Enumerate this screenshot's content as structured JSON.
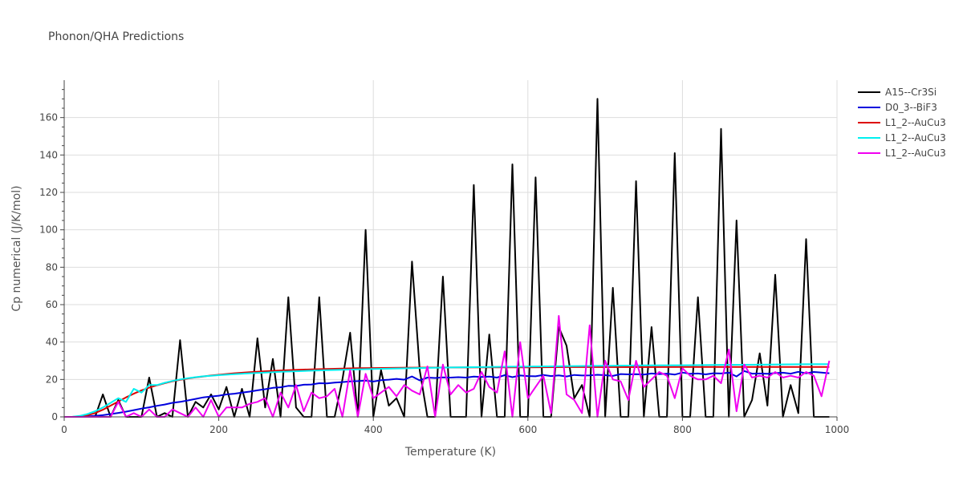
{
  "chart_data": {
    "type": "line",
    "title": "Phonon/QHA Predictions",
    "xlabel": "Temperature (K)",
    "ylabel": "Cp numerical (J/K/mol)",
    "xlim": [
      0,
      1000
    ],
    "ylim": [
      0,
      180
    ],
    "xticks": [
      0,
      200,
      400,
      600,
      800,
      1000
    ],
    "yticks": [
      0,
      20,
      40,
      60,
      80,
      100,
      120,
      140,
      160
    ],
    "grid": true,
    "legend_position": "top-right",
    "series": [
      {
        "name": "A15--Cr3Si",
        "color": "#000000",
        "x": [
          0,
          10,
          20,
          30,
          40,
          50,
          60,
          70,
          80,
          90,
          100,
          110,
          120,
          130,
          140,
          150,
          160,
          170,
          180,
          190,
          200,
          210,
          220,
          230,
          240,
          250,
          260,
          270,
          280,
          290,
          300,
          310,
          320,
          330,
          340,
          350,
          360,
          370,
          380,
          390,
          400,
          410,
          420,
          430,
          440,
          450,
          460,
          470,
          480,
          490,
          500,
          510,
          520,
          530,
          540,
          550,
          560,
          570,
          580,
          590,
          600,
          610,
          620,
          630,
          640,
          650,
          660,
          670,
          680,
          690,
          700,
          710,
          720,
          730,
          740,
          750,
          760,
          770,
          780,
          790,
          800,
          810,
          820,
          830,
          840,
          850,
          860,
          870,
          880,
          890,
          900,
          910,
          920,
          930,
          940,
          950,
          960,
          970,
          980,
          990
        ],
        "y": [
          0,
          0,
          0,
          0,
          0,
          12,
          0,
          9,
          0,
          0,
          0,
          21,
          0,
          2,
          0,
          41,
          0,
          8,
          5,
          12,
          4,
          16,
          0,
          15,
          0,
          42,
          5,
          31,
          0,
          64,
          5,
          0,
          0,
          64,
          0,
          0,
          20,
          45,
          0,
          100,
          0,
          25,
          6,
          10,
          0,
          83,
          25,
          0,
          0,
          75,
          0,
          0,
          0,
          124,
          0,
          44,
          0,
          0,
          135,
          0,
          0,
          128,
          0,
          0,
          48,
          38,
          10,
          17,
          0,
          170,
          0,
          69,
          0,
          0,
          126,
          0,
          48,
          0,
          0,
          141,
          0,
          0,
          64,
          0,
          0,
          154,
          0,
          105,
          0,
          9,
          34,
          6,
          76,
          0,
          17,
          2,
          95,
          0,
          0,
          0
        ]
      },
      {
        "name": "D0_3--BiF3",
        "color": "#0000dd",
        "x": [
          0,
          10,
          20,
          30,
          40,
          50,
          60,
          70,
          80,
          90,
          100,
          110,
          120,
          130,
          140,
          150,
          160,
          170,
          180,
          190,
          200,
          210,
          220,
          230,
          240,
          250,
          260,
          270,
          280,
          290,
          300,
          310,
          320,
          330,
          340,
          350,
          360,
          370,
          380,
          390,
          400,
          410,
          420,
          430,
          440,
          450,
          460,
          470,
          480,
          490,
          500,
          510,
          520,
          530,
          540,
          550,
          560,
          570,
          580,
          590,
          600,
          610,
          620,
          630,
          640,
          650,
          660,
          670,
          680,
          690,
          700,
          710,
          720,
          730,
          740,
          750,
          760,
          770,
          780,
          790,
          800,
          810,
          820,
          830,
          840,
          850,
          860,
          870,
          880,
          890,
          900,
          910,
          920,
          930,
          940,
          950,
          960,
          970,
          980,
          990
        ],
        "y": [
          0,
          0,
          0,
          0.2,
          0.5,
          0.9,
          1.5,
          2.1,
          2.8,
          3.6,
          4.4,
          5.1,
          5.9,
          6.6,
          7.5,
          8,
          8.8,
          9.6,
          10.4,
          10.9,
          11.3,
          12,
          12.4,
          13,
          13.5,
          14.2,
          14.8,
          15.5,
          15.8,
          16.6,
          16.5,
          17.2,
          17.3,
          18,
          17.9,
          18.3,
          18.6,
          19,
          19.1,
          19.4,
          18.9,
          19.6,
          19.9,
          20.3,
          19.9,
          21.6,
          19.5,
          21,
          20.8,
          21.1,
          21,
          21.2,
          21,
          21.5,
          21.3,
          21.5,
          21,
          22.3,
          21.2,
          22.1,
          21.8,
          21.7,
          22.4,
          21.8,
          22.2,
          21.6,
          22.4,
          22.1,
          22.2,
          22.5,
          22.3,
          21.9,
          22.9,
          22.7,
          22.8,
          22.6,
          23.2,
          22.9,
          23.1,
          22.6,
          23.7,
          23,
          23.2,
          22.7,
          23.3,
          23.2,
          23.6,
          21.6,
          24.5,
          23.1,
          23.2,
          23,
          23.4,
          23.6,
          23.1,
          24.1,
          23.3,
          24,
          23.7,
          23.3
        ]
      },
      {
        "name": "L1_2--AuCu3",
        "color": "#dd0000",
        "x": [
          0,
          10,
          20,
          30,
          40,
          50,
          60,
          70,
          80,
          90,
          100,
          110,
          120,
          130,
          140,
          150,
          160,
          170,
          180,
          190,
          200,
          220,
          240,
          260,
          280,
          300,
          320,
          340,
          360,
          380,
          400,
          450,
          500,
          550,
          600,
          650,
          700,
          750,
          800,
          850,
          900,
          950,
          990
        ],
        "y": [
          0,
          0,
          0.2,
          0.8,
          2,
          3.8,
          6,
          8.2,
          10.4,
          12.4,
          14.2,
          15.6,
          16.9,
          18,
          19,
          19.8,
          20.5,
          21.1,
          21.6,
          22.1,
          22.5,
          23.3,
          23.9,
          24.4,
          24.8,
          25.1,
          25.4,
          25.6,
          25.8,
          26,
          26.1,
          26.3,
          26.4,
          26.5,
          26.5,
          26.6,
          26.6,
          26.6,
          26.7,
          26.7,
          26.7,
          26.7,
          26.7
        ]
      },
      {
        "name": "L1_2--AuCu3",
        "color": "#00f0f0",
        "x": [
          0,
          10,
          20,
          30,
          40,
          50,
          60,
          70,
          80,
          90,
          100,
          110,
          120,
          130,
          140,
          150,
          160,
          170,
          180,
          190,
          200,
          220,
          240,
          260,
          280,
          300,
          320,
          340,
          360,
          380,
          400,
          450,
          500,
          550,
          600,
          650,
          700,
          750,
          800,
          850,
          900,
          950,
          990
        ],
        "y": [
          0,
          0,
          0.5,
          1.5,
          3,
          5,
          7.5,
          10,
          8,
          15,
          13,
          17,
          17,
          18.2,
          19.2,
          20,
          20.7,
          21.2,
          21.7,
          22,
          22.3,
          22.8,
          23.3,
          23.7,
          24.1,
          24.4,
          24.7,
          25,
          25.2,
          25.4,
          25.6,
          26,
          26.4,
          26.7,
          26.9,
          27.1,
          27.3,
          27.5,
          27.6,
          27.8,
          27.9,
          28.1,
          28.2
        ]
      },
      {
        "name": "L1_2--AuCu3",
        "color": "#f000f0",
        "x": [
          0,
          10,
          20,
          30,
          40,
          50,
          60,
          70,
          80,
          90,
          100,
          110,
          120,
          130,
          140,
          150,
          160,
          170,
          180,
          190,
          200,
          210,
          220,
          230,
          240,
          250,
          260,
          270,
          280,
          290,
          300,
          310,
          320,
          330,
          340,
          350,
          360,
          370,
          380,
          390,
          400,
          410,
          420,
          430,
          440,
          450,
          460,
          470,
          480,
          490,
          500,
          510,
          520,
          530,
          540,
          550,
          560,
          570,
          580,
          590,
          600,
          610,
          620,
          630,
          640,
          650,
          660,
          670,
          680,
          690,
          700,
          710,
          720,
          730,
          740,
          750,
          760,
          770,
          780,
          790,
          800,
          810,
          820,
          830,
          840,
          850,
          860,
          870,
          880,
          890,
          900,
          910,
          920,
          930,
          940,
          950,
          960,
          970,
          980,
          990
        ],
        "y": [
          0,
          0,
          0,
          0,
          0,
          0,
          0,
          8,
          0,
          2,
          0,
          4,
          0,
          0,
          4,
          2,
          0,
          5,
          0,
          9,
          0,
          5,
          5,
          5,
          7,
          8,
          10,
          0,
          13,
          5,
          17,
          3,
          13,
          10,
          11,
          15,
          0,
          25,
          0,
          23,
          10,
          13,
          16,
          11,
          17,
          14,
          12,
          27,
          0,
          28,
          12,
          17,
          13,
          15,
          24,
          16,
          13,
          35,
          0,
          40,
          10,
          16,
          22,
          2,
          54,
          12,
          9,
          2,
          49,
          0,
          30,
          20,
          19,
          9,
          30,
          16,
          20,
          24,
          22,
          10,
          26,
          22,
          20,
          20,
          22,
          18,
          36,
          3,
          28,
          21,
          22,
          21,
          24,
          21,
          22,
          21,
          24,
          22,
          11,
          30
        ]
      }
    ]
  }
}
